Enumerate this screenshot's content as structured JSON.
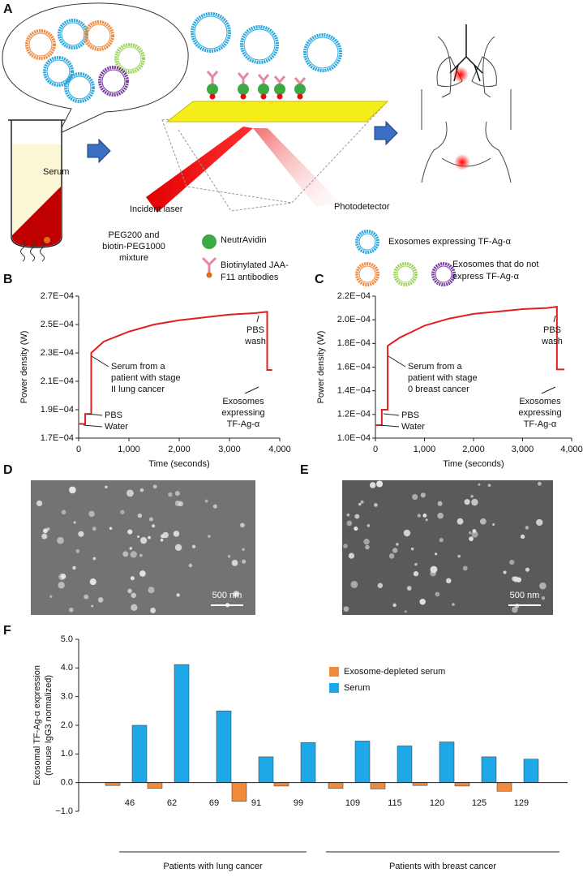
{
  "figure_a": {
    "label": "A",
    "serum": "Serum",
    "incident_laser": "Incident laser",
    "photodetector": "Photodetector",
    "legend": [
      [
        "PEG200 and",
        "biotin-PEG1000",
        "mixture"
      ],
      [
        "NeutrAvidin"
      ],
      [
        "Biotinylated JAA-",
        "F11 antibodies"
      ],
      [
        "Exosomes expressing TF-Ag-α"
      ],
      [
        "Exosomes that do not",
        "express TF-Ag-α"
      ]
    ]
  },
  "images": [
    {
      "label": "D",
      "scale_bar": "500 nm"
    },
    {
      "label": "E",
      "scale_bar": "500 nm"
    }
  ],
  "chart_data": [
    {
      "type": "line",
      "label": "B",
      "xlabel": "Time (seconds)",
      "ylabel": "Power density (W)",
      "color": "#e02020",
      "x": [
        0,
        130,
        130,
        250,
        250,
        500,
        1000,
        1500,
        2000,
        2500,
        3000,
        3500,
        3750,
        3750,
        3850
      ],
      "values": [
        0.00018,
        0.00018,
        0.000187,
        0.000187,
        0.00023,
        0.000238,
        0.000245,
        0.00025,
        0.000253,
        0.000255,
        0.000257,
        0.000258,
        0.000259,
        0.000218,
        0.000218
      ],
      "xlim": [
        0,
        4000
      ],
      "xticks": [
        0,
        {
          "value": 1000,
          "label": "1,000"
        },
        {
          "value": 2000,
          "label": "2,000"
        },
        {
          "value": 3000,
          "label": "3,000"
        },
        {
          "value": 4000,
          "label": "4,000"
        }
      ],
      "ylim": [
        0.00017,
        0.00027
      ],
      "yticks": [
        {
          "value": 0.00017,
          "label": "1.7E−04"
        },
        {
          "value": 0.00019,
          "label": "1.9E−04"
        },
        {
          "value": 0.00021,
          "label": "2.1E−04"
        },
        {
          "value": 0.00023,
          "label": "2.3E−04"
        },
        {
          "value": 0.00025,
          "label": "2.5E−04"
        },
        {
          "value": 0.00027,
          "label": "2.7E−04"
        }
      ],
      "annotations": [
        [
          "PBS"
        ],
        [
          "Water"
        ],
        [
          "Serum from a",
          "patient with stage",
          "II lung cancer"
        ],
        [
          "PBS",
          "wash"
        ],
        [
          "Exosomes",
          "expressing",
          "TF-Ag-α"
        ]
      ]
    },
    {
      "type": "line",
      "label": "C",
      "xlabel": "Time (seconds)",
      "ylabel": "Power density (W)",
      "color": "#e02020",
      "x": [
        0,
        130,
        130,
        250,
        250,
        500,
        1000,
        1500,
        2000,
        2500,
        3000,
        3500,
        3700,
        3700,
        3850
      ],
      "values": [
        0.000111,
        0.000111,
        0.000124,
        0.000124,
        0.000178,
        0.000185,
        0.000195,
        0.000201,
        0.000205,
        0.000207,
        0.000209,
        0.00021,
        0.000211,
        0.000158,
        0.000158
      ],
      "xlim": [
        0,
        4000
      ],
      "xticks": [
        0,
        {
          "value": 1000,
          "label": "1,000"
        },
        {
          "value": 2000,
          "label": "2,000"
        },
        {
          "value": 3000,
          "label": "3,000"
        },
        {
          "value": 4000,
          "label": "4,000"
        }
      ],
      "ylim": [
        0.0001,
        0.00022
      ],
      "yticks": [
        {
          "value": 0.0001,
          "label": "1.0E−04"
        },
        {
          "value": 0.00012,
          "label": "1.2E−04"
        },
        {
          "value": 0.00014,
          "label": "1.4E−04"
        },
        {
          "value": 0.00016,
          "label": "1.6E−04"
        },
        {
          "value": 0.00018,
          "label": "1.8E−04"
        },
        {
          "value": 0.0002,
          "label": "2.0E−04"
        },
        {
          "value": 0.00022,
          "label": "2.2E−04"
        }
      ],
      "annotations": [
        [
          "PBS"
        ],
        [
          "Water"
        ],
        [
          "Serum from a",
          "patient with stage",
          "0 breast cancer"
        ],
        [
          "PBS",
          "wash"
        ],
        [
          "Exosomes",
          "expressing",
          "TF-Ag-α"
        ]
      ]
    },
    {
      "type": "bar",
      "label": "F",
      "ylabel": [
        "Exosomal TF-Ag-α expression",
        "(mouse IgG3 normalized)"
      ],
      "categories": [
        "46",
        "62",
        "69",
        "91",
        "99",
        "109",
        "115",
        "120",
        "125",
        "129"
      ],
      "series": [
        {
          "name": "Exosome-depleted serum",
          "color": "#f08a3c",
          "values": [
            -0.1,
            -0.2,
            0,
            -0.65,
            -0.12,
            -0.2,
            -0.22,
            -0.1,
            -0.12,
            -0.3
          ]
        },
        {
          "name": "Serum",
          "color": "#1fa8e8",
          "values": [
            2.0,
            4.12,
            2.5,
            0.9,
            1.4,
            1.45,
            1.28,
            1.42,
            0.9,
            0.82
          ]
        }
      ],
      "ylim": [
        -1,
        5
      ],
      "yticks": [
        {
          "value": -1,
          "label": "−1.0"
        },
        {
          "value": 0,
          "label": "0.0"
        },
        {
          "value": 1,
          "label": "1.0"
        },
        {
          "value": 2,
          "label": "2.0"
        },
        {
          "value": 3,
          "label": "3.0"
        },
        {
          "value": 4,
          "label": "4.0"
        },
        {
          "value": 5,
          "label": "5.0"
        }
      ],
      "legend": "top-right",
      "groups": [
        "Patients with lung cancer",
        "Patients with breast cancer"
      ]
    }
  ]
}
